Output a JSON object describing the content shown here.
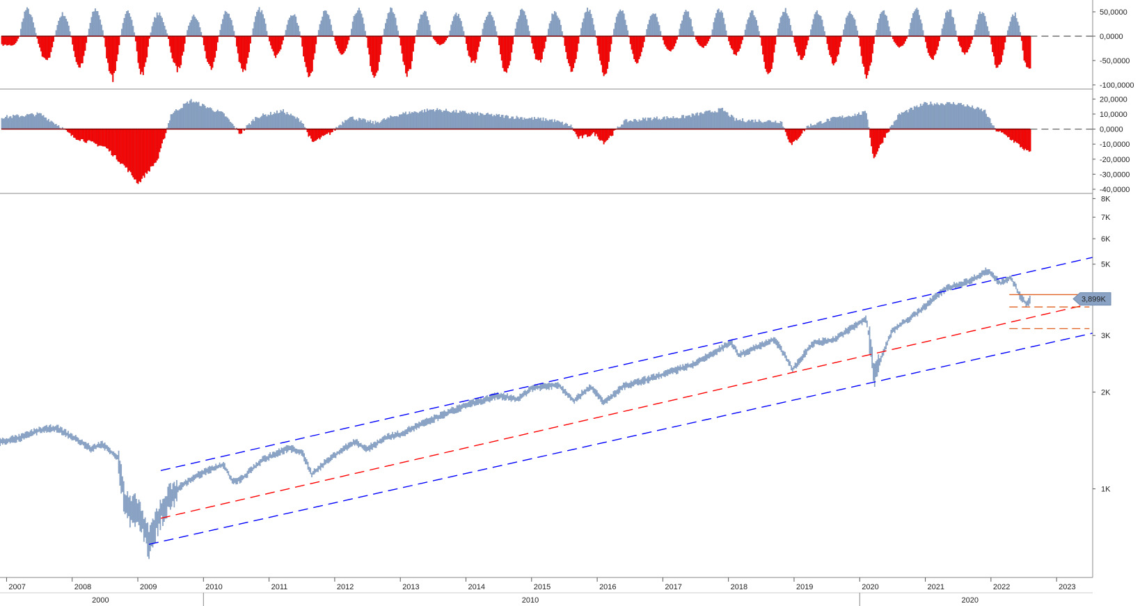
{
  "chart_data": [
    {
      "type": "bar",
      "panel": "oscillator-top",
      "ylim": [
        -100000,
        60000
      ],
      "yticks": [
        "50,0000",
        "0,0000",
        "-50,0000",
        "-100,0000"
      ],
      "ytick_values": [
        50000,
        0,
        -50000,
        -100000
      ],
      "reference_line": 0,
      "colors": {
        "positive": "#8aa3c4",
        "negative": "#ff0000"
      },
      "waves": [
        {
          "t": 2007.08,
          "v": -20000
        },
        {
          "t": 2007.3,
          "v": 60000
        },
        {
          "t": 2007.6,
          "v": -55000
        },
        {
          "t": 2007.85,
          "v": 50000
        },
        {
          "t": 2008.1,
          "v": -70000
        },
        {
          "t": 2008.35,
          "v": 60000
        },
        {
          "t": 2008.6,
          "v": -95000
        },
        {
          "t": 2008.85,
          "v": 55000
        },
        {
          "t": 2009.05,
          "v": -85000
        },
        {
          "t": 2009.3,
          "v": 50000
        },
        {
          "t": 2009.6,
          "v": -75000
        },
        {
          "t": 2009.85,
          "v": 45000
        },
        {
          "t": 2010.1,
          "v": -70000
        },
        {
          "t": 2010.35,
          "v": 55000
        },
        {
          "t": 2010.6,
          "v": -80000
        },
        {
          "t": 2010.85,
          "v": 60000
        },
        {
          "t": 2011.1,
          "v": -45000
        },
        {
          "t": 2011.35,
          "v": 50000
        },
        {
          "t": 2011.6,
          "v": -90000
        },
        {
          "t": 2011.85,
          "v": 55000
        },
        {
          "t": 2012.1,
          "v": -40000
        },
        {
          "t": 2012.35,
          "v": 60000
        },
        {
          "t": 2012.6,
          "v": -90000
        },
        {
          "t": 2012.85,
          "v": 60000
        },
        {
          "t": 2013.1,
          "v": -85000
        },
        {
          "t": 2013.35,
          "v": 55000
        },
        {
          "t": 2013.6,
          "v": -20000
        },
        {
          "t": 2013.85,
          "v": 50000
        },
        {
          "t": 2014.1,
          "v": -60000
        },
        {
          "t": 2014.35,
          "v": 55000
        },
        {
          "t": 2014.6,
          "v": -80000
        },
        {
          "t": 2014.85,
          "v": 60000
        },
        {
          "t": 2015.1,
          "v": -60000
        },
        {
          "t": 2015.35,
          "v": 55000
        },
        {
          "t": 2015.6,
          "v": -75000
        },
        {
          "t": 2015.85,
          "v": 60000
        },
        {
          "t": 2016.1,
          "v": -85000
        },
        {
          "t": 2016.35,
          "v": 60000
        },
        {
          "t": 2016.6,
          "v": -60000
        },
        {
          "t": 2016.85,
          "v": 55000
        },
        {
          "t": 2017.1,
          "v": -35000
        },
        {
          "t": 2017.35,
          "v": 55000
        },
        {
          "t": 2017.6,
          "v": -25000
        },
        {
          "t": 2017.85,
          "v": 60000
        },
        {
          "t": 2018.1,
          "v": -40000
        },
        {
          "t": 2018.35,
          "v": 55000
        },
        {
          "t": 2018.6,
          "v": -85000
        },
        {
          "t": 2018.85,
          "v": 60000
        },
        {
          "t": 2019.1,
          "v": -50000
        },
        {
          "t": 2019.35,
          "v": 55000
        },
        {
          "t": 2019.6,
          "v": -60000
        },
        {
          "t": 2019.85,
          "v": 55000
        },
        {
          "t": 2020.1,
          "v": -90000
        },
        {
          "t": 2020.35,
          "v": 55000
        },
        {
          "t": 2020.6,
          "v": -25000
        },
        {
          "t": 2020.85,
          "v": 60000
        },
        {
          "t": 2021.1,
          "v": -50000
        },
        {
          "t": 2021.35,
          "v": 60000
        },
        {
          "t": 2021.6,
          "v": -40000
        },
        {
          "t": 2021.85,
          "v": 55000
        },
        {
          "t": 2022.1,
          "v": -70000
        },
        {
          "t": 2022.35,
          "v": 50000
        },
        {
          "t": 2022.55,
          "v": -75000
        }
      ]
    },
    {
      "type": "bar",
      "panel": "oscillator-middle",
      "ylim": [
        -40000,
        22000
      ],
      "yticks": [
        "20,0000",
        "10,0000",
        "0,0000",
        "-10,0000",
        "-20,0000",
        "-30,0000",
        "-40,0000"
      ],
      "ytick_values": [
        20000,
        10000,
        0,
        -10000,
        -20000,
        -30000,
        -40000
      ],
      "reference_line": 0,
      "colors": {
        "positive": "#8aa3c4",
        "negative": "#ff0000"
      },
      "keypoints": [
        {
          "t": 2007.0,
          "v": 8000
        },
        {
          "t": 2007.5,
          "v": 10000
        },
        {
          "t": 2007.8,
          "v": 2000
        },
        {
          "t": 2008.0,
          "v": -5000
        },
        {
          "t": 2008.5,
          "v": -12000
        },
        {
          "t": 2008.8,
          "v": -25000
        },
        {
          "t": 2009.0,
          "v": -36000
        },
        {
          "t": 2009.3,
          "v": -20000
        },
        {
          "t": 2009.5,
          "v": 10000
        },
        {
          "t": 2009.8,
          "v": 19000
        },
        {
          "t": 2010.3,
          "v": 10000
        },
        {
          "t": 2010.55,
          "v": -3000
        },
        {
          "t": 2010.8,
          "v": 8000
        },
        {
          "t": 2011.2,
          "v": 12000
        },
        {
          "t": 2011.5,
          "v": 5000
        },
        {
          "t": 2011.65,
          "v": -9000
        },
        {
          "t": 2011.95,
          "v": -2000
        },
        {
          "t": 2012.2,
          "v": 8000
        },
        {
          "t": 2012.6,
          "v": 4000
        },
        {
          "t": 2013.0,
          "v": 10000
        },
        {
          "t": 2013.5,
          "v": 13000
        },
        {
          "t": 2014.2,
          "v": 10000
        },
        {
          "t": 2014.7,
          "v": 8000
        },
        {
          "t": 2015.3,
          "v": 6000
        },
        {
          "t": 2015.6,
          "v": 2000
        },
        {
          "t": 2015.7,
          "v": -6000
        },
        {
          "t": 2015.95,
          "v": -3000
        },
        {
          "t": 2016.1,
          "v": -9000
        },
        {
          "t": 2016.4,
          "v": 5000
        },
        {
          "t": 2016.8,
          "v": 7000
        },
        {
          "t": 2017.3,
          "v": 8000
        },
        {
          "t": 2017.9,
          "v": 13000
        },
        {
          "t": 2018.1,
          "v": 6000
        },
        {
          "t": 2018.8,
          "v": 5000
        },
        {
          "t": 2018.95,
          "v": -11000
        },
        {
          "t": 2019.2,
          "v": 2000
        },
        {
          "t": 2019.6,
          "v": 7000
        },
        {
          "t": 2020.1,
          "v": 11000
        },
        {
          "t": 2020.2,
          "v": -20000
        },
        {
          "t": 2020.4,
          "v": -3000
        },
        {
          "t": 2020.6,
          "v": 10000
        },
        {
          "t": 2021.0,
          "v": 17000
        },
        {
          "t": 2021.5,
          "v": 17000
        },
        {
          "t": 2021.9,
          "v": 12000
        },
        {
          "t": 2022.05,
          "v": 0
        },
        {
          "t": 2022.25,
          "v": -5000
        },
        {
          "t": 2022.55,
          "v": -15000
        }
      ]
    },
    {
      "type": "line",
      "panel": "price",
      "yscale": "log",
      "ylim": [
        530,
        8300
      ],
      "yticks": [
        "8K",
        "7K",
        "6K",
        "5K",
        "3K",
        "2K",
        "1K"
      ],
      "ytick_values": [
        8000,
        7000,
        6000,
        5000,
        3000,
        2000,
        1000
      ],
      "xlim": [
        2006.9,
        2023.55
      ],
      "xticks": [
        "2007",
        "2008",
        "2009",
        "2010",
        "2011",
        "2012",
        "2013",
        "2014",
        "2015",
        "2016",
        "2017",
        "2018",
        "2019",
        "2020",
        "2021",
        "2022",
        "2023"
      ],
      "xtick_values": [
        2007,
        2008,
        2009,
        2010,
        2011,
        2012,
        2013,
        2014,
        2015,
        2016,
        2017,
        2018,
        2019,
        2020,
        2021,
        2022,
        2023
      ],
      "decade_labels": [
        {
          "label": "2000",
          "t": 2008.45
        },
        {
          "label": "2010",
          "t": 2015.0
        },
        {
          "label": "2020",
          "t": 2021.7
        }
      ],
      "decade_separators": [
        2010.0,
        2020.0
      ],
      "last_value_label": "3,899K",
      "last_value": 3899,
      "series_color": "#8aa3c4",
      "series": [
        {
          "t": 2006.9,
          "v": 1400
        },
        {
          "t": 2007.2,
          "v": 1440
        },
        {
          "t": 2007.5,
          "v": 1520
        },
        {
          "t": 2007.75,
          "v": 1550
        },
        {
          "t": 2008.0,
          "v": 1450
        },
        {
          "t": 2008.3,
          "v": 1330
        },
        {
          "t": 2008.45,
          "v": 1380
        },
        {
          "t": 2008.7,
          "v": 1250
        },
        {
          "t": 2008.8,
          "v": 900
        },
        {
          "t": 2008.9,
          "v": 850
        },
        {
          "t": 2009.0,
          "v": 870
        },
        {
          "t": 2009.1,
          "v": 750
        },
        {
          "t": 2009.17,
          "v": 680
        },
        {
          "t": 2009.35,
          "v": 850
        },
        {
          "t": 2009.6,
          "v": 1000
        },
        {
          "t": 2009.9,
          "v": 1100
        },
        {
          "t": 2010.3,
          "v": 1190
        },
        {
          "t": 2010.45,
          "v": 1050
        },
        {
          "t": 2010.6,
          "v": 1080
        },
        {
          "t": 2010.9,
          "v": 1230
        },
        {
          "t": 2011.3,
          "v": 1340
        },
        {
          "t": 2011.5,
          "v": 1300
        },
        {
          "t": 2011.65,
          "v": 1110
        },
        {
          "t": 2011.95,
          "v": 1250
        },
        {
          "t": 2012.3,
          "v": 1400
        },
        {
          "t": 2012.5,
          "v": 1330
        },
        {
          "t": 2012.8,
          "v": 1450
        },
        {
          "t": 2013.0,
          "v": 1480
        },
        {
          "t": 2013.5,
          "v": 1650
        },
        {
          "t": 2014.0,
          "v": 1820
        },
        {
          "t": 2014.5,
          "v": 1950
        },
        {
          "t": 2014.8,
          "v": 1900
        },
        {
          "t": 2015.0,
          "v": 2060
        },
        {
          "t": 2015.4,
          "v": 2110
        },
        {
          "t": 2015.65,
          "v": 1880
        },
        {
          "t": 2015.9,
          "v": 2080
        },
        {
          "t": 2016.1,
          "v": 1850
        },
        {
          "t": 2016.4,
          "v": 2080
        },
        {
          "t": 2016.9,
          "v": 2230
        },
        {
          "t": 2017.5,
          "v": 2450
        },
        {
          "t": 2018.05,
          "v": 2850
        },
        {
          "t": 2018.15,
          "v": 2600
        },
        {
          "t": 2018.7,
          "v": 2920
        },
        {
          "t": 2018.98,
          "v": 2350
        },
        {
          "t": 2019.3,
          "v": 2850
        },
        {
          "t": 2019.6,
          "v": 2900
        },
        {
          "t": 2020.1,
          "v": 3380
        },
        {
          "t": 2020.22,
          "v": 2230
        },
        {
          "t": 2020.5,
          "v": 3100
        },
        {
          "t": 2020.9,
          "v": 3550
        },
        {
          "t": 2021.3,
          "v": 4180
        },
        {
          "t": 2021.7,
          "v": 4450
        },
        {
          "t": 2021.95,
          "v": 4780
        },
        {
          "t": 2022.15,
          "v": 4350
        },
        {
          "t": 2022.3,
          "v": 4550
        },
        {
          "t": 2022.45,
          "v": 3950
        },
        {
          "t": 2022.55,
          "v": 3750
        },
        {
          "t": 2022.6,
          "v": 3899
        }
      ],
      "trend_lines": [
        {
          "role": "upper-channel",
          "color": "#0000ff",
          "p1": {
            "t": 2009.35,
            "v": 1140
          },
          "p2": {
            "t": 2023.55,
            "v": 5250
          }
        },
        {
          "role": "mid-channel",
          "color": "#ff0000",
          "p1": {
            "t": 2009.35,
            "v": 810
          },
          "p2": {
            "t": 2023.55,
            "v": 3780
          }
        },
        {
          "role": "lower-channel",
          "color": "#0000ff",
          "p1": {
            "t": 2009.17,
            "v": 672
          },
          "p2": {
            "t": 2023.55,
            "v": 3050
          }
        }
      ],
      "levels": [
        {
          "v": 4020,
          "style": "solid",
          "color": "#e06020"
        },
        {
          "v": 3680,
          "style": "dashed",
          "color": "#e06020"
        },
        {
          "v": 3150,
          "style": "dashed",
          "color": "#e06020"
        }
      ]
    }
  ]
}
